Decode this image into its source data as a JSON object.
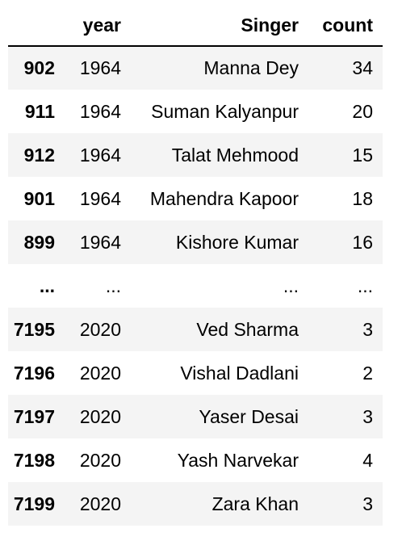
{
  "table": {
    "columns": {
      "index": "",
      "year": "year",
      "singer": "Singer",
      "count": "count"
    },
    "rows": [
      {
        "index": "902",
        "year": "1964",
        "singer": "Manna Dey",
        "count": "34"
      },
      {
        "index": "911",
        "year": "1964",
        "singer": "Suman Kalyanpur",
        "count": "20"
      },
      {
        "index": "912",
        "year": "1964",
        "singer": "Talat Mehmood",
        "count": "15"
      },
      {
        "index": "901",
        "year": "1964",
        "singer": "Mahendra Kapoor",
        "count": "18"
      },
      {
        "index": "899",
        "year": "1964",
        "singer": "Kishore Kumar",
        "count": "16"
      },
      {
        "index": "...",
        "year": "...",
        "singer": "...",
        "count": "..."
      },
      {
        "index": "7195",
        "year": "2020",
        "singer": "Ved Sharma",
        "count": "3"
      },
      {
        "index": "7196",
        "year": "2020",
        "singer": "Vishal Dadlani",
        "count": "2"
      },
      {
        "index": "7197",
        "year": "2020",
        "singer": "Yaser Desai",
        "count": "3"
      },
      {
        "index": "7198",
        "year": "2020",
        "singer": "Yash Narvekar",
        "count": "4"
      },
      {
        "index": "7199",
        "year": "2020",
        "singer": "Zara Khan",
        "count": "3"
      }
    ]
  }
}
